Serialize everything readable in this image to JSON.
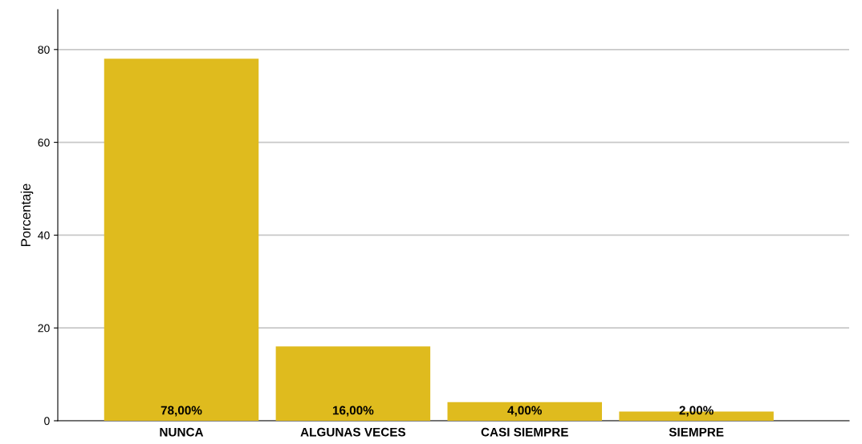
{
  "chart_data": {
    "type": "bar",
    "ylabel": "Porcentaje",
    "categories": [
      "NUNCA",
      "ALGUNAS VECES",
      "CASI SIEMPRE",
      "SIEMPRE"
    ],
    "values": [
      78,
      16,
      4,
      2
    ],
    "value_labels": [
      "78,00%",
      "16,00%",
      "4,00%",
      "2,00%"
    ],
    "color": "#dfbb1e",
    "ylim": [
      0,
      88.6
    ],
    "yticks": [
      0,
      20,
      40,
      60,
      80
    ],
    "grid": "y",
    "legend": false
  }
}
